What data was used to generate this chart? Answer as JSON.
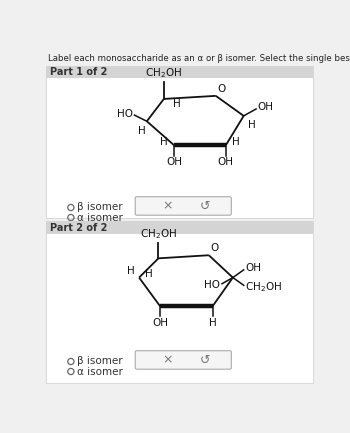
{
  "title": "Label each monosaccharide as an α or β isomer. Select the single best answer for each part.",
  "bg_color": "#f0f0f0",
  "panel_bg": "#ffffff",
  "header_bg": "#d4d4d4",
  "part1_label": "Part 1 of 2",
  "part2_label": "Part 2 of 2",
  "beta_label": "β isomer",
  "alpha_label": "α isomer",
  "button_bg": "#f0f0f0",
  "button_border": "#aaaaaa",
  "ring_color": "#111111"
}
